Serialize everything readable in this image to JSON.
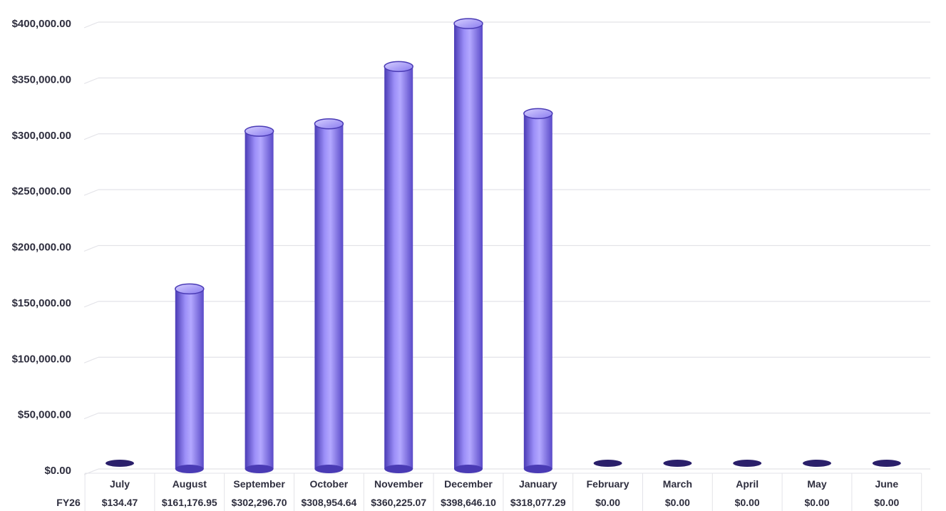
{
  "chart_data": {
    "type": "bar",
    "row_header": "FY26",
    "categories": [
      "July",
      "August",
      "September",
      "October",
      "November",
      "December",
      "January",
      "February",
      "March",
      "April",
      "May",
      "June"
    ],
    "value_labels": [
      "$134.47",
      "$161,176.95",
      "$302,296.70",
      "$308,954.64",
      "$360,225.07",
      "$398,646.10",
      "$318,077.29",
      "$0.00",
      "$0.00",
      "$0.00",
      "$0.00",
      "$0.00"
    ],
    "series": [
      {
        "values": [
          134.47,
          161176.95,
          302296.7,
          308954.64,
          360225.07,
          398646.1,
          318077.29,
          0,
          0,
          0,
          0,
          0
        ]
      }
    ],
    "y_ticks": [
      "$0.00",
      "$50,000.00",
      "$100,000.00",
      "$150,000.00",
      "$200,000.00",
      "$250,000.00",
      "$300,000.00",
      "$350,000.00",
      "$400,000.00"
    ],
    "ylim": [
      0,
      400000
    ],
    "grid": true,
    "legend": "none",
    "colors": {
      "bar": "#7e6ef0",
      "bar_dark": "#4a3bb5",
      "bar_light": "#b3a8ff",
      "empty_cap": "#2a1f6a",
      "grid": "#e3e3e8"
    }
  }
}
